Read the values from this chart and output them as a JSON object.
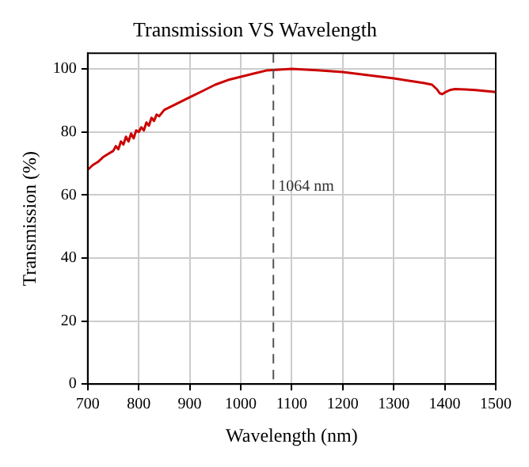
{
  "chart_data": {
    "type": "line",
    "title": "Transmission VS Wavelength",
    "xlabel": "Wavelength (nm)",
    "ylabel": "Transmission (%)",
    "series": [
      {
        "color": "#cc0000",
        "x": [
          700,
          710,
          720,
          730,
          740,
          750,
          755,
          760,
          765,
          770,
          775,
          780,
          785,
          790,
          795,
          800,
          805,
          810,
          815,
          820,
          825,
          830,
          835,
          840,
          850,
          875,
          900,
          925,
          950,
          975,
          1000,
          1025,
          1050,
          1075,
          1100,
          1150,
          1200,
          1250,
          1300,
          1340,
          1360,
          1375,
          1385,
          1390,
          1395,
          1400,
          1410,
          1420,
          1440,
          1460,
          1480,
          1500
        ],
        "values": [
          68,
          69.5,
          70.5,
          72,
          73,
          74,
          75.5,
          74.5,
          77,
          76,
          78.5,
          77,
          79.5,
          78,
          80.5,
          80,
          81.5,
          80.5,
          83,
          82,
          84.5,
          83.5,
          85.5,
          85,
          87,
          89,
          91,
          93,
          95,
          96.5,
          97.5,
          98.5,
          99.5,
          99.8,
          100,
          99.6,
          99,
          98,
          97,
          96,
          95.5,
          95,
          93.5,
          92.3,
          92,
          92.5,
          93.3,
          93.6,
          93.5,
          93.3,
          93,
          92.7
        ]
      }
    ],
    "xlim": [
      700,
      1500
    ],
    "xticks": [
      700,
      800,
      900,
      1000,
      1100,
      1200,
      1300,
      1400,
      1500
    ],
    "ylim": [
      0,
      105
    ],
    "yticks": [
      0,
      20,
      40,
      60,
      80,
      100
    ],
    "grid": true,
    "line_style": "solid",
    "marker": "none",
    "ref_lines": [
      {
        "axis": "x",
        "value": 1064,
        "label": "1064 nm",
        "line_style": "dashed",
        "color": "#555555"
      }
    ]
  }
}
